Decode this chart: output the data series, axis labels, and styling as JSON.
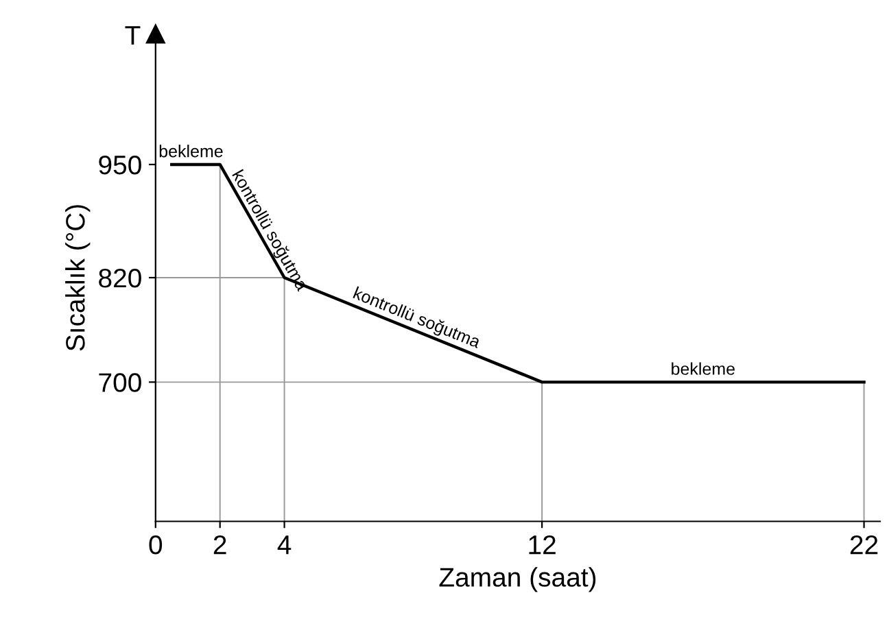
{
  "chart_data": {
    "type": "line",
    "xlabel": "Zaman (saat)",
    "ylabel": "Sıcaklık (°C)",
    "x": [
      0.5,
      2,
      4,
      12,
      22
    ],
    "series": [
      {
        "color": "#000000",
        "values": [
          950,
          950,
          820,
          700,
          700
        ]
      }
    ],
    "xlim": [
      0,
      22.5
    ],
    "ylim": [
      540,
      1100
    ],
    "xticks": [
      0,
      2,
      4,
      12,
      22
    ],
    "yticks": [
      700,
      820,
      950
    ],
    "marker": "none",
    "line_style": "solid",
    "ref_lines": [
      {
        "axis": "x",
        "value": 2,
        "color": "#999999"
      },
      {
        "axis": "x",
        "value": 4,
        "color": "#999999"
      },
      {
        "axis": "x",
        "value": 12,
        "color": "#999999"
      },
      {
        "axis": "x",
        "value": 22,
        "color": "#999999"
      },
      {
        "axis": "y",
        "value": 820,
        "color": "#999999"
      },
      {
        "axis": "y",
        "value": 700,
        "color": "#999999"
      }
    ],
    "annotations": [
      "T",
      {
        "text": "bekleme",
        "x": 1.1,
        "y": 950
      },
      {
        "text": "kontrollü soğutma",
        "x": 3.3,
        "y": 865
      },
      {
        "text": "kontrollü soğutma",
        "x": 8,
        "y": 760
      },
      {
        "text": "bekleme",
        "x": 17,
        "y": 700
      }
    ]
  }
}
